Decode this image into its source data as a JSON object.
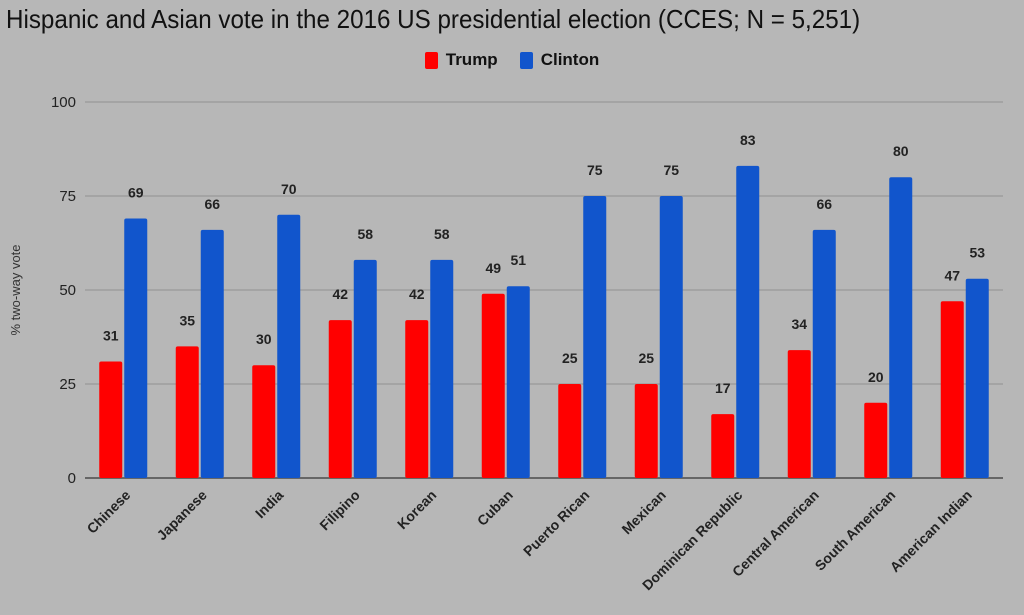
{
  "chart_data": {
    "type": "bar",
    "title": "Hispanic and Asian vote in the 2016 US presidential election (CCES; N = 5,251)",
    "xlabel": "",
    "ylabel": "% two-way vote",
    "ylim": [
      0,
      100
    ],
    "yticks": [
      0,
      25,
      50,
      75,
      100
    ],
    "grid": true,
    "legend_position": "top-center",
    "categories": [
      "Chinese",
      "Japanese",
      "India",
      "Filipino",
      "Korean",
      "Cuban",
      "Puerto Rican",
      "Mexican",
      "Dominican Republic",
      "Central American",
      "South American",
      "American Indian"
    ],
    "series": [
      {
        "name": "Trump",
        "color": "#ff0000",
        "values": [
          31,
          35,
          30,
          42,
          42,
          49,
          25,
          25,
          17,
          34,
          20,
          47
        ]
      },
      {
        "name": "Clinton",
        "color": "#1155cc",
        "values": [
          69,
          66,
          70,
          58,
          58,
          51,
          75,
          75,
          83,
          66,
          80,
          53
        ]
      }
    ]
  }
}
